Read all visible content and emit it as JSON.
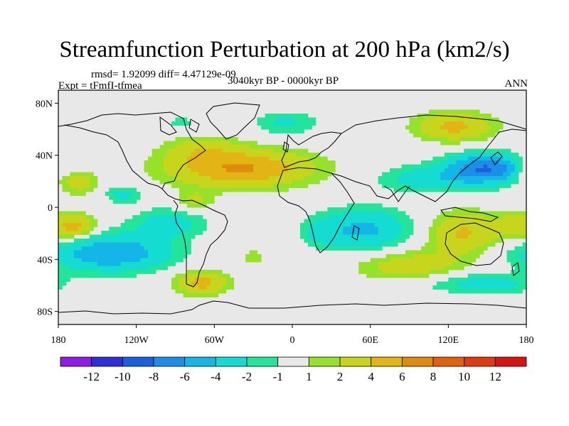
{
  "title": "Streamfunction Perturbation at 200 hPa (km2/s)",
  "stats_line": "rmsd= 1.92099 diff= 4.47129e-09",
  "experiment_line": "Expt = tFmfI-tfmea",
  "period": "3040kyr BP - 0000kyr BP",
  "season": "ANN",
  "map_data": {
    "type": "filled-contour-map",
    "projection": "cylindrical-equidistant",
    "lon_range": [
      -180,
      180
    ],
    "lat_range": [
      -90,
      90
    ],
    "x_ticks": [
      {
        "lon": -180,
        "label": "180"
      },
      {
        "lon": -120,
        "label": "120W"
      },
      {
        "lon": -60,
        "label": "60W"
      },
      {
        "lon": 0,
        "label": "0"
      },
      {
        "lon": 60,
        "label": "60E"
      },
      {
        "lon": 120,
        "label": "120E"
      },
      {
        "lon": 180,
        "label": "180"
      }
    ],
    "y_ticks": [
      {
        "lat": 80,
        "label": "80N"
      },
      {
        "lat": 40,
        "label": "40N"
      },
      {
        "lat": 0,
        "label": "0"
      },
      {
        "lat": -40,
        "label": "40S"
      },
      {
        "lat": -80,
        "label": "80S"
      }
    ],
    "features": [
      {
        "name": "anomaly-n-atlantic",
        "lon": -40,
        "lat": 30,
        "rx": 55,
        "ry": 14,
        "amp": 6.2
      },
      {
        "name": "anomaly-n-atlantic-west",
        "lon": -70,
        "lat": 45,
        "rx": 28,
        "ry": 10,
        "amp": 2.5
      },
      {
        "name": "anomaly-caribbean",
        "lon": -75,
        "lat": 5,
        "rx": 14,
        "ry": 8,
        "amp": 2.3
      },
      {
        "name": "anomaly-east-asia",
        "lon": 150,
        "lat": 30,
        "rx": 30,
        "ry": 11,
        "amp": -7.8
      },
      {
        "name": "anomaly-east-asia-ext",
        "lon": 105,
        "lat": 22,
        "rx": 40,
        "ry": 10,
        "amp": -3.0
      },
      {
        "name": "anomaly-siberia",
        "lon": 125,
        "lat": 62,
        "rx": 30,
        "ry": 11,
        "amp": 4.5
      },
      {
        "name": "anomaly-north-europe",
        "lon": -5,
        "lat": 65,
        "rx": 25,
        "ry": 9,
        "amp": -2.3
      },
      {
        "name": "anomaly-arctic-canada",
        "lon": -85,
        "lat": 65,
        "rx": 12,
        "ry": 5,
        "amp": -1.6
      },
      {
        "name": "anomaly-sw-pacific",
        "lon": -140,
        "lat": -35,
        "rx": 45,
        "ry": 14,
        "amp": -6.0
      },
      {
        "name": "anomaly-se-pacific",
        "lon": -95,
        "lat": -12,
        "rx": 28,
        "ry": 11,
        "amp": -3.0
      },
      {
        "name": "anomaly-ne-pacific",
        "lon": -130,
        "lat": 10,
        "rx": 14,
        "ry": 7,
        "amp": -2.6
      },
      {
        "name": "anomaly-central-pacific-n",
        "lon": -165,
        "lat": 20,
        "rx": 15,
        "ry": 10,
        "amp": 3.2
      },
      {
        "name": "anomaly-central-pacific-s",
        "lon": -165,
        "lat": -15,
        "rx": 14,
        "ry": 9,
        "amp": 3.3
      },
      {
        "name": "anomaly-far-east-pacific",
        "lon": 178,
        "lat": 30,
        "rx": 8,
        "ry": 10,
        "amp": 2.6
      },
      {
        "name": "anomaly-south-america-tip",
        "lon": -70,
        "lat": -58,
        "rx": 20,
        "ry": 9,
        "amp": 4.8
      },
      {
        "name": "anomaly-south-atlantic",
        "lon": -30,
        "lat": -38,
        "rx": 8,
        "ry": 8,
        "amp": 1.6
      },
      {
        "name": "anomaly-indian-ocean",
        "lon": 55,
        "lat": -17,
        "rx": 35,
        "ry": 16,
        "amp": -4.5
      },
      {
        "name": "anomaly-africa-sw",
        "lon": 22,
        "lat": -20,
        "rx": 14,
        "ry": 10,
        "amp": -1.8
      },
      {
        "name": "anomaly-south-indian",
        "lon": 90,
        "lat": -45,
        "rx": 40,
        "ry": 12,
        "amp": 3.2
      },
      {
        "name": "anomaly-australia",
        "lon": 130,
        "lat": -20,
        "rx": 25,
        "ry": 16,
        "amp": 4.2
      },
      {
        "name": "anomaly-australia-ext",
        "lon": 175,
        "lat": -15,
        "rx": 25,
        "ry": 12,
        "amp": 3.0
      },
      {
        "name": "anomaly-southern-ocean",
        "lon": 130,
        "lat": -58,
        "rx": 40,
        "ry": 8,
        "amp": -2.2
      },
      {
        "name": "anomaly-south-pacific-mid",
        "lon": 160,
        "lat": -60,
        "rx": 25,
        "ry": 8,
        "amp": -1.6
      }
    ]
  },
  "colorbar": {
    "boundary_labels": [
      "-12",
      "-10",
      "-8",
      "-6",
      "-4",
      "-2",
      "-1",
      "1",
      "2",
      "4",
      "6",
      "8",
      "10",
      "12"
    ],
    "colors": [
      "#8b1de6",
      "#2f2fd8",
      "#1a5fe0",
      "#1c8ee8",
      "#13b6e6",
      "#15dcd0",
      "#22e49a",
      "#e8e8e8",
      "#96e22a",
      "#c7d61c",
      "#e3b514",
      "#e08a0e",
      "#e0600d",
      "#de3a10",
      "#d61411"
    ]
  }
}
